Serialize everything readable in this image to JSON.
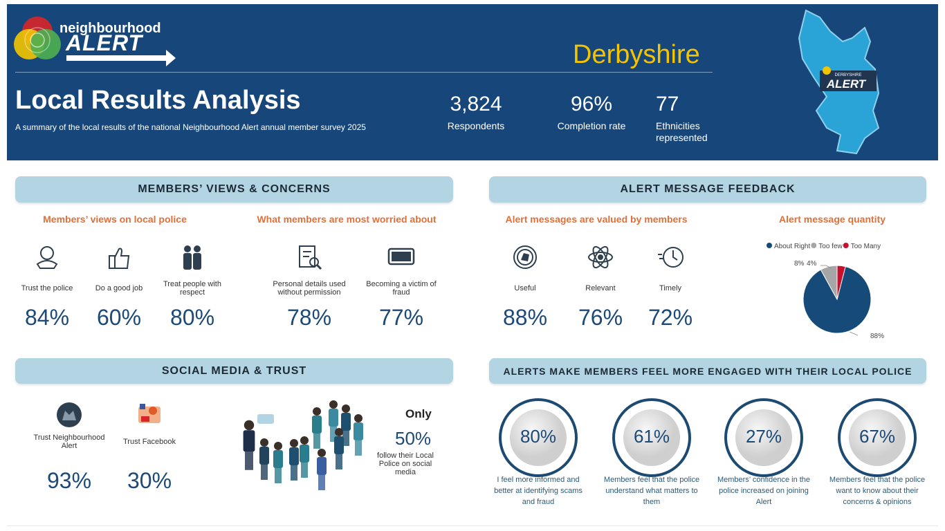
{
  "header": {
    "logo_top": "neighbourhood",
    "logo_bottom": "ALERT",
    "region": "Derbyshire",
    "title": "Local Results Analysis",
    "subtitle": "A summary of the local results of the national Neighbourhood Alert annual member survey 2025",
    "stats": [
      {
        "value": "3,824",
        "label": "Respondents"
      },
      {
        "value": "96%",
        "label": "Completion rate"
      },
      {
        "value": "77",
        "label": "Ethnicities represented"
      }
    ],
    "map_badge_small": "DERBYSHIRE",
    "map_badge": "ALERT"
  },
  "views": {
    "heading": "MEMBERS’ VIEWS & CONCERNS",
    "police": {
      "heading": "Members’ views on local police",
      "items": [
        {
          "label": "Trust the police",
          "value": "84%"
        },
        {
          "label": "Do a good job",
          "value": "60%"
        },
        {
          "label": "Treat people with respect",
          "value": "80%"
        }
      ]
    },
    "worried": {
      "heading": "What members are most worried about",
      "items": [
        {
          "label": "Personal details used without permission",
          "value": "78%"
        },
        {
          "label": "Becoming a victim of fraud",
          "value": "77%"
        }
      ]
    }
  },
  "feedback": {
    "heading": "ALERT MESSAGE FEEDBACK",
    "valued": {
      "heading": "Alert messages are valued by members",
      "items": [
        {
          "label": "Useful",
          "value": "88%"
        },
        {
          "label": "Relevant",
          "value": "76%"
        },
        {
          "label": "Timely",
          "value": "72%"
        }
      ]
    }
  },
  "chart_data": {
    "type": "pie",
    "title": "Alert message quantity",
    "categories": [
      "About Right",
      "Too few",
      "Too Many"
    ],
    "values": [
      88,
      8,
      4
    ],
    "value_labels": [
      "88%",
      "8%",
      "4%"
    ],
    "colors": [
      "#164a78",
      "#a6a6a6",
      "#c8102e"
    ],
    "legend": "top"
  },
  "social": {
    "heading": "SOCIAL MEDIA & TRUST",
    "items": [
      {
        "label": "Trust Neighbourhood Alert",
        "value": "93%"
      },
      {
        "label": "Trust Facebook",
        "value": "30%"
      }
    ],
    "only": {
      "lead": "Only",
      "value": "50%",
      "caption": "follow their Local Police on social media"
    }
  },
  "engaged": {
    "heading": "ALERTS MAKE MEMBERS FEEL MORE ENGAGED WITH THEIR LOCAL POLICE",
    "items": [
      {
        "value": "80%",
        "label": "I feel more informed and better at identifying scams and fraud"
      },
      {
        "value": "61%",
        "label": "Members feel that the police understand what matters to them"
      },
      {
        "value": "27%",
        "label": "Members’ confidence in the police increased on joining Alert"
      },
      {
        "value": "67%",
        "label": "Members feel that the police want to know about their concerns & opinions"
      }
    ]
  }
}
